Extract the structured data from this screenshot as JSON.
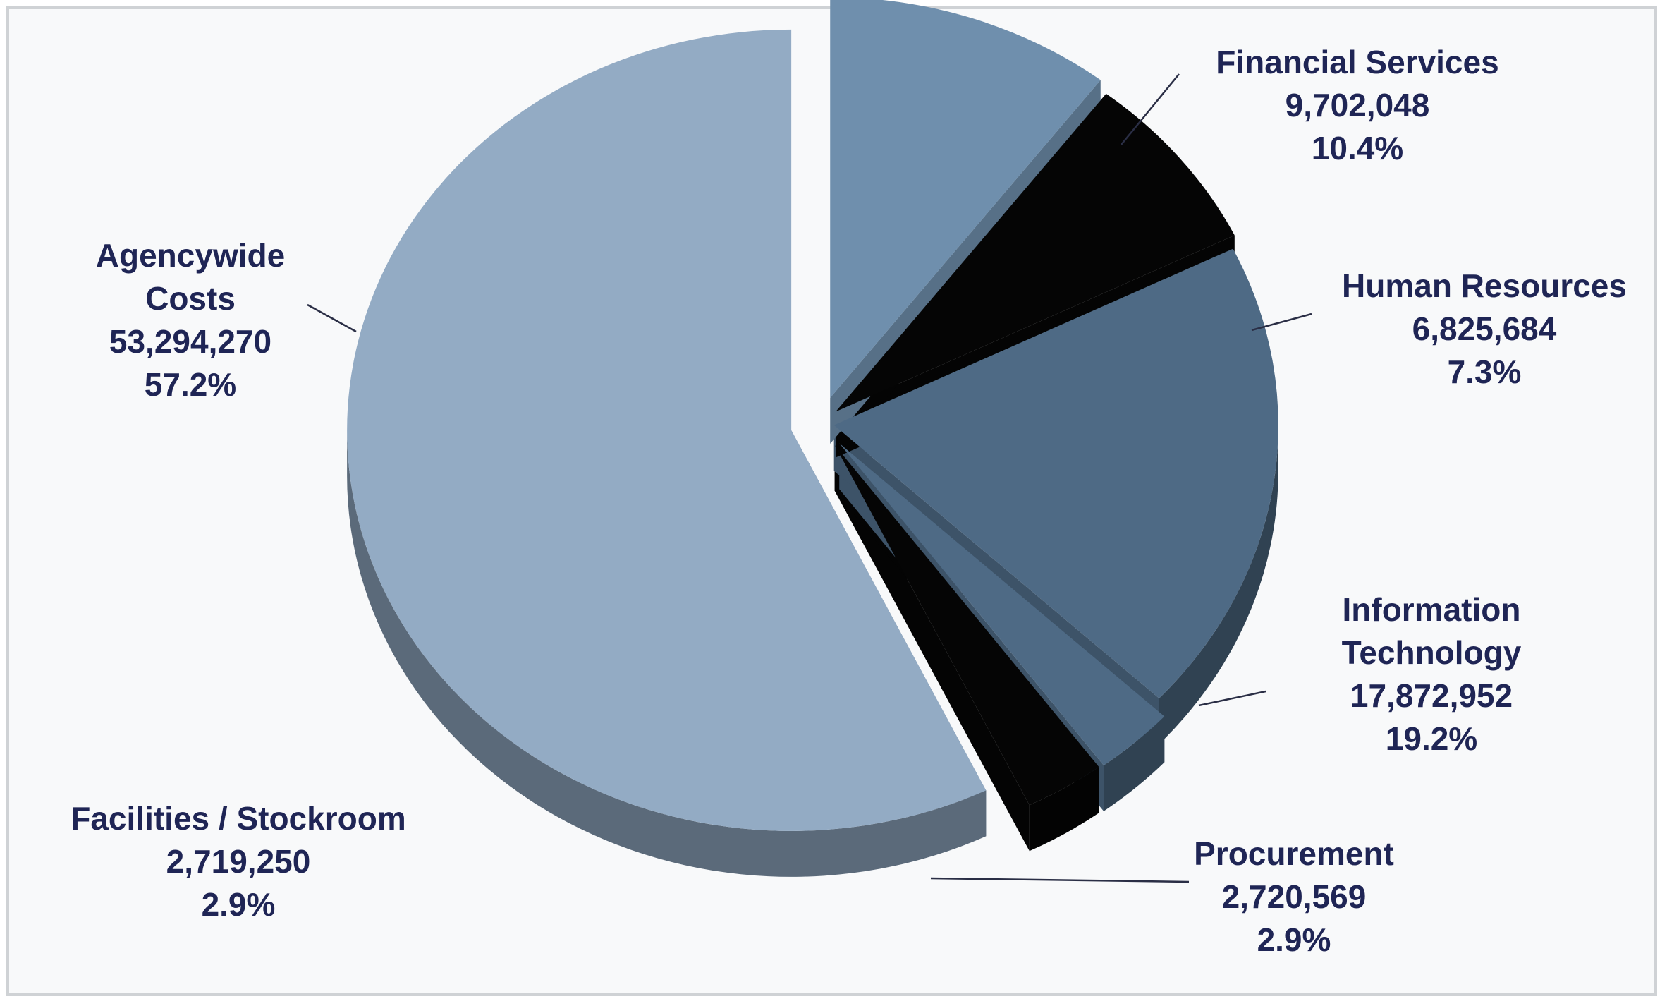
{
  "chart_data": {
    "type": "pie",
    "title": "",
    "slices": [
      {
        "label_lines": [
          "Financial Services"
        ],
        "value_text": "9,702,048",
        "percent_text": "10.4%",
        "value": 9702048,
        "percent": 10.4,
        "color": "#6f8fad"
      },
      {
        "label_lines": [
          "Human Resources"
        ],
        "value_text": "6,825,684",
        "percent_text": "7.3%",
        "value": 6825684,
        "percent": 7.3,
        "color": "#050505"
      },
      {
        "label_lines": [
          "Information",
          "Technology"
        ],
        "value_text": "17,872,952",
        "percent_text": "19.2%",
        "value": 17872952,
        "percent": 19.2,
        "color": "#4e6a85"
      },
      {
        "label_lines": [
          "Procurement"
        ],
        "value_text": "2,720,569",
        "percent_text": "2.9%",
        "value": 2720569,
        "percent": 2.9,
        "color": "#4e6a85"
      },
      {
        "label_lines": [
          "Facilities / Stockroom"
        ],
        "value_text": "2,719,250",
        "percent_text": "2.9%",
        "value": 2719250,
        "percent": 2.9,
        "color": "#050505"
      },
      {
        "label_lines": [
          "Agencywide",
          "Costs"
        ],
        "value_text": "53,294,270",
        "percent_text": "57.2%",
        "value": 53294270,
        "percent": 57.2,
        "color": "#93abc4"
      }
    ],
    "legend": "none",
    "style": "3d-exploded"
  }
}
